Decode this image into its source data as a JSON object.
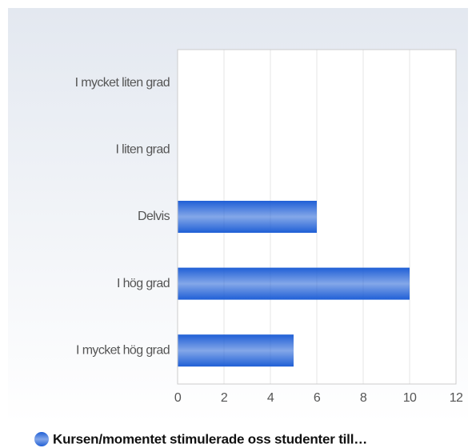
{
  "chart_data": {
    "type": "bar",
    "orientation": "horizontal",
    "categories": [
      "I mycket liten grad",
      "I liten grad",
      "Delvis",
      "I hög grad",
      "I mycket hög grad"
    ],
    "series": [
      {
        "name": "Kursen/momentet stimulerade oss studenter till…",
        "color": "#1f5fd6",
        "values": [
          0,
          0,
          6,
          10,
          5
        ]
      }
    ],
    "xlim": [
      0,
      12
    ],
    "xticks": [
      0,
      2,
      4,
      6,
      8,
      10,
      12
    ],
    "grid": true
  }
}
